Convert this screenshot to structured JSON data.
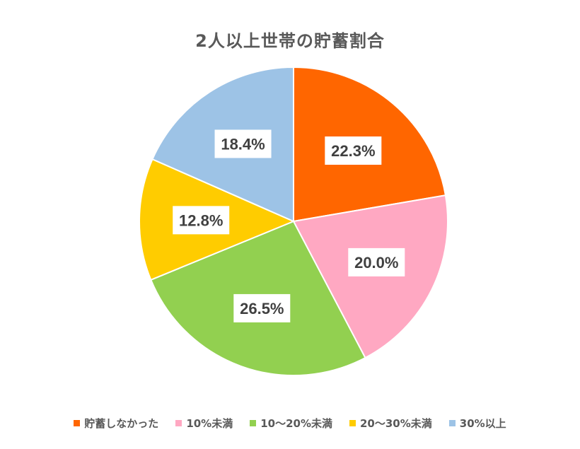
{
  "chart_data": {
    "type": "pie",
    "title": "2人以上世帯の貯蓄割合",
    "categories": [
      "貯蓄しなかった",
      "10%未満",
      "10～20%未満",
      "20～30%未満",
      "30%以上"
    ],
    "values": [
      22.3,
      20.0,
      26.5,
      12.8,
      18.4
    ],
    "data_labels": [
      "22.3%",
      "20.0%",
      "26.5%",
      "12.8%",
      "18.4%"
    ],
    "colors": [
      "#FF6600",
      "#FFA8C2",
      "#92D050",
      "#FFCC00",
      "#9DC3E6"
    ],
    "legend_position": "bottom",
    "start_angle": "12 o'clock",
    "direction": "clockwise"
  }
}
